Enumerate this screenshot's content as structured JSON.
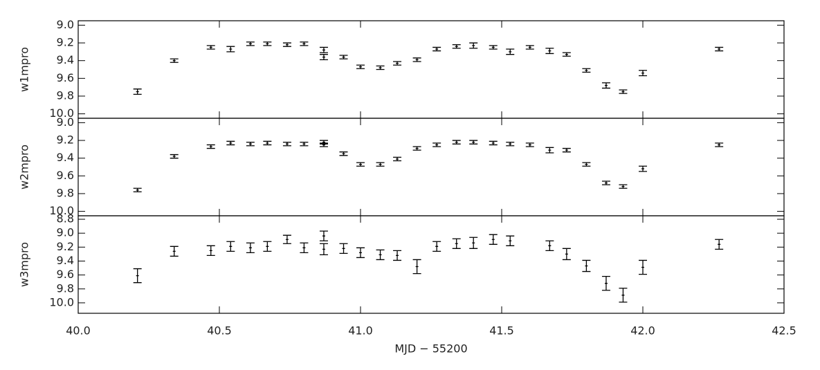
{
  "chart_data": [
    {
      "type": "errorbar",
      "ylabel": "w1mpro",
      "color": "#000000",
      "x": [
        40.21,
        40.34,
        40.47,
        40.54,
        40.61,
        40.67,
        40.74,
        40.8,
        40.87,
        40.87,
        40.94,
        41.0,
        41.07,
        41.13,
        41.2,
        41.27,
        41.34,
        41.4,
        41.47,
        41.53,
        41.6,
        41.67,
        41.73,
        41.8,
        41.87,
        41.93,
        42.0,
        42.27
      ],
      "values": [
        9.75,
        9.4,
        9.25,
        9.27,
        9.21,
        9.21,
        9.22,
        9.21,
        9.28,
        9.36,
        9.36,
        9.47,
        9.48,
        9.43,
        9.39,
        9.27,
        9.24,
        9.23,
        9.25,
        9.3,
        9.25,
        9.29,
        9.33,
        9.51,
        9.68,
        9.75,
        9.54,
        9.27
      ],
      "errors": [
        0.03,
        0.02,
        0.02,
        0.03,
        0.02,
        0.02,
        0.02,
        0.02,
        0.03,
        0.03,
        0.02,
        0.02,
        0.02,
        0.02,
        0.02,
        0.02,
        0.02,
        0.03,
        0.02,
        0.03,
        0.02,
        0.03,
        0.02,
        0.02,
        0.03,
        0.02,
        0.03,
        0.02
      ],
      "xlim": [
        40,
        42.5
      ],
      "ylim": [
        10.05,
        8.95
      ],
      "yticks": [
        {
          "value": 9,
          "label": "9.0"
        },
        9.2,
        9.4,
        9.6,
        9.8,
        {
          "value": 10,
          "label": "10.0"
        }
      ]
    },
    {
      "type": "errorbar",
      "ylabel": "w2mpro",
      "color": "#000000",
      "x": [
        40.21,
        40.34,
        40.47,
        40.54,
        40.61,
        40.67,
        40.74,
        40.8,
        40.87,
        40.87,
        40.94,
        41.0,
        41.07,
        41.13,
        41.2,
        41.27,
        41.34,
        41.4,
        41.47,
        41.53,
        41.6,
        41.67,
        41.73,
        41.8,
        41.87,
        41.93,
        42.0,
        42.27
      ],
      "values": [
        9.76,
        9.38,
        9.27,
        9.23,
        9.24,
        9.23,
        9.24,
        9.24,
        9.22,
        9.25,
        9.35,
        9.47,
        9.47,
        9.41,
        9.29,
        9.25,
        9.22,
        9.22,
        9.23,
        9.24,
        9.25,
        9.31,
        9.31,
        9.47,
        9.68,
        9.72,
        9.52,
        9.25
      ],
      "errors": [
        0.02,
        0.02,
        0.02,
        0.02,
        0.02,
        0.02,
        0.02,
        0.02,
        0.02,
        0.02,
        0.02,
        0.02,
        0.02,
        0.02,
        0.02,
        0.02,
        0.02,
        0.02,
        0.02,
        0.02,
        0.02,
        0.03,
        0.02,
        0.02,
        0.02,
        0.02,
        0.03,
        0.02
      ],
      "xlim": [
        40,
        42.5
      ],
      "ylim": [
        10.05,
        8.95
      ],
      "yticks": [
        {
          "value": 9,
          "label": "9.0"
        },
        9.2,
        9.4,
        9.6,
        9.8,
        {
          "value": 10,
          "label": "10.0"
        }
      ]
    },
    {
      "type": "errorbar",
      "ylabel": "w3mpro",
      "xlabel": "MJD − 55200",
      "color": "#000000",
      "x": [
        40.21,
        40.34,
        40.47,
        40.54,
        40.61,
        40.67,
        40.74,
        40.8,
        40.87,
        40.87,
        40.94,
        41.0,
        41.07,
        41.13,
        41.2,
        41.27,
        41.34,
        41.4,
        41.47,
        41.53,
        41.67,
        41.73,
        41.8,
        41.87,
        41.93,
        42.0,
        42.27
      ],
      "values": [
        9.61,
        9.26,
        9.25,
        9.19,
        9.21,
        9.19,
        9.09,
        9.21,
        9.04,
        9.23,
        9.22,
        9.28,
        9.31,
        9.32,
        9.48,
        9.19,
        9.15,
        9.14,
        9.09,
        9.11,
        9.18,
        9.3,
        9.47,
        9.72,
        9.89,
        9.49,
        9.16
      ],
      "errors": [
        0.1,
        0.07,
        0.07,
        0.07,
        0.07,
        0.07,
        0.06,
        0.07,
        0.07,
        0.08,
        0.07,
        0.07,
        0.07,
        0.07,
        0.1,
        0.07,
        0.07,
        0.08,
        0.07,
        0.07,
        0.07,
        0.08,
        0.08,
        0.1,
        0.1,
        0.1,
        0.07
      ],
      "xlim": [
        40,
        42.5
      ],
      "ylim": [
        10.15,
        8.75
      ],
      "yticks": [
        8.8,
        {
          "value": 9,
          "label": "9.0"
        },
        9.2,
        9.4,
        9.6,
        9.8,
        {
          "value": 10,
          "label": "10.0"
        }
      ],
      "xticks": [
        {
          "value": 40,
          "label": "40.0"
        },
        40.5,
        {
          "value": 41,
          "label": "41.0"
        },
        41.5,
        {
          "value": 42,
          "label": "42.0"
        },
        42.5
      ]
    }
  ]
}
